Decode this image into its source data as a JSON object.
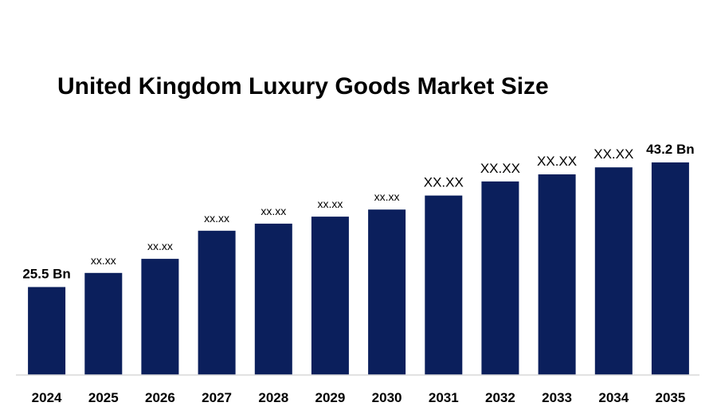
{
  "chart_data": {
    "type": "bar",
    "title": "United Kingdom Luxury Goods Market Size",
    "xlabel": "",
    "ylabel": "",
    "categories": [
      "2024",
      "2025",
      "2026",
      "2027",
      "2028",
      "2029",
      "2030",
      "2031",
      "2032",
      "2033",
      "2034",
      "2035"
    ],
    "values": [
      25.5,
      27.5,
      29.5,
      33.5,
      34.5,
      35.5,
      36.5,
      38.5,
      40.5,
      41.5,
      42.5,
      43.2
    ],
    "data_labels": [
      "25.5 Bn",
      "xx.xx",
      "xx.xx",
      "xx.xx",
      "xx.xx",
      "xx.xx",
      "xx.xx",
      "XX.XX",
      "XX.XX",
      "XX.XX",
      "XX.XX",
      "43.2 Bn"
    ],
    "label_styles": [
      "bold",
      "small",
      "small",
      "small",
      "small",
      "small",
      "small",
      "big",
      "big",
      "big",
      "big",
      "bold"
    ],
    "ylim": [
      13,
      45
    ],
    "grid": false,
    "legend": "none",
    "bar_color": "#0b1f5c",
    "axis_color": "#d9d9d9"
  }
}
